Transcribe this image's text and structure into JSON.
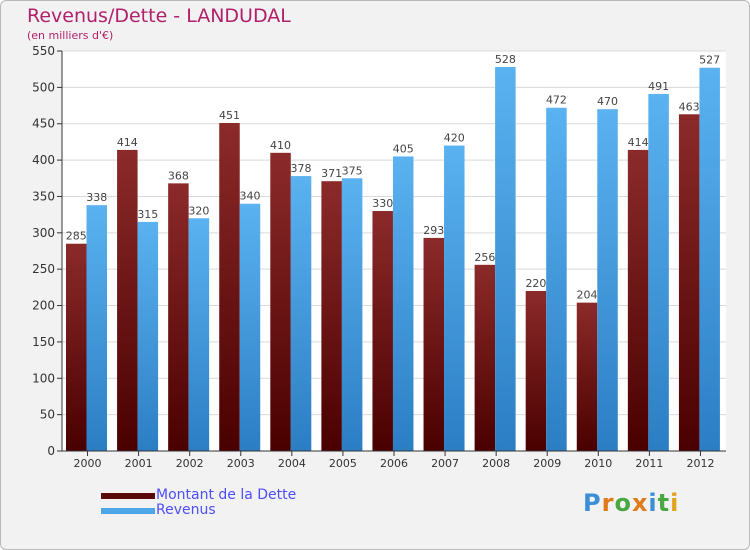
{
  "header": {
    "title": "Revenus/Dette - LANDUDAL",
    "subtitle": "(en milliers d'€)"
  },
  "legend": {
    "items": [
      {
        "label": "Montant de la Dette",
        "color": "#6b1010"
      },
      {
        "label": "Revenus",
        "color": "#4ea6e8"
      }
    ]
  },
  "logo": {
    "letters": [
      "P",
      "r",
      "o",
      "x",
      "i",
      "t",
      "i"
    ],
    "colors": [
      "#3a8fd6",
      "#e07b1b",
      "#4aa843",
      "#e07b1b",
      "#3a8fd6",
      "#4aa843",
      "#e0a31b"
    ]
  },
  "chart_data": {
    "type": "bar",
    "categories": [
      "2000",
      "2001",
      "2002",
      "2003",
      "2004",
      "2005",
      "2006",
      "2007",
      "2008",
      "2009",
      "2010",
      "2011",
      "2012"
    ],
    "series": [
      {
        "name": "Montant de la Dette",
        "values": [
          285,
          414,
          368,
          451,
          410,
          371,
          330,
          293,
          256,
          220,
          204,
          414,
          463
        ],
        "color": "#7a1616"
      },
      {
        "name": "Revenus",
        "values": [
          338,
          315,
          320,
          340,
          378,
          375,
          405,
          420,
          528,
          472,
          470,
          491,
          527
        ],
        "color": "#4ea6e8"
      }
    ],
    "ylim": [
      0,
      550
    ],
    "yticks": [
      0,
      50,
      100,
      150,
      200,
      250,
      300,
      350,
      400,
      450,
      500,
      550
    ],
    "grid": true,
    "legend_position": "bottom-left"
  }
}
